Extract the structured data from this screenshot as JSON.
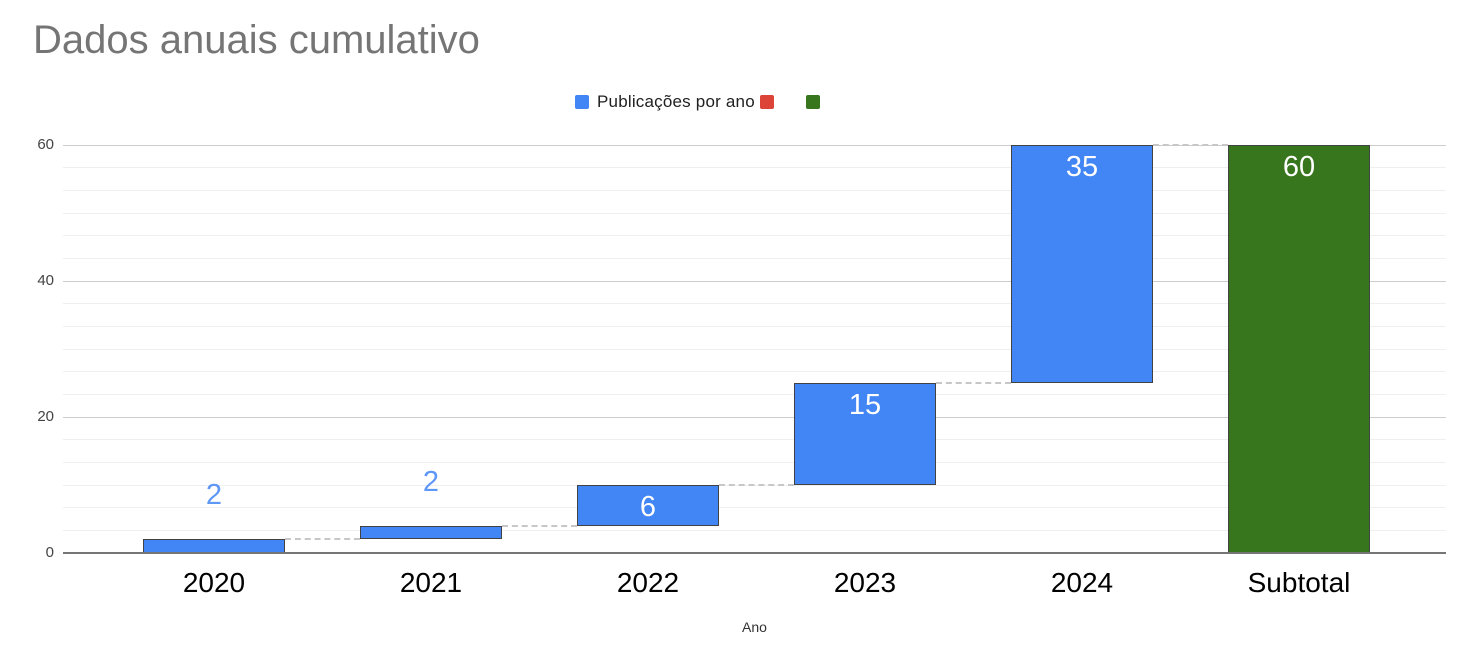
{
  "title": "Dados anuais cumulativo",
  "legend": {
    "items": [
      {
        "label": "Publicações por ano",
        "color": "#4285f4"
      },
      {
        "label": "",
        "color": "#db4437"
      },
      {
        "label": "",
        "color": "#38761d"
      }
    ]
  },
  "chart_data": {
    "type": "bar",
    "subtype": "waterfall-cumulative",
    "title": "Dados anuais cumulativo",
    "xlabel": "Ano",
    "ylabel": "",
    "categories": [
      "2020",
      "2021",
      "2022",
      "2023",
      "2024",
      "Subtotal"
    ],
    "series": [
      {
        "name": "Publicações por ano",
        "values": [
          2,
          2,
          6,
          15,
          35,
          60
        ]
      }
    ],
    "segments": [
      {
        "category": "2020",
        "value": 2,
        "start": 0,
        "end": 2,
        "label": "2",
        "label_position": "outside",
        "color": "#4285f4"
      },
      {
        "category": "2021",
        "value": 2,
        "start": 2,
        "end": 4,
        "label": "2",
        "label_position": "outside",
        "color": "#4285f4"
      },
      {
        "category": "2022",
        "value": 6,
        "start": 4,
        "end": 10,
        "label": "6",
        "label_position": "inside",
        "color": "#4285f4"
      },
      {
        "category": "2023",
        "value": 15,
        "start": 10,
        "end": 25,
        "label": "15",
        "label_position": "inside",
        "color": "#4285f4"
      },
      {
        "category": "2024",
        "value": 35,
        "start": 25,
        "end": 60,
        "label": "35",
        "label_position": "inside",
        "color": "#4285f4"
      },
      {
        "category": "Subtotal",
        "value": 60,
        "start": 0,
        "end": 60,
        "label": "60",
        "label_position": "inside",
        "color": "#38761d"
      }
    ],
    "yticks": [
      0,
      20,
      40,
      60
    ],
    "ylim": [
      0,
      60
    ],
    "minor_gridline_divisions_per_major": 6,
    "grid": true,
    "legend_position": "top",
    "connector_style": "dashed"
  },
  "colors": {
    "bar_blue": "#4285f4",
    "bar_green": "#38761d",
    "legend_red": "#db4437",
    "outside_label_blue": "#5e97f6",
    "inside_label_white": "#ffffff",
    "title_gray": "#757575",
    "axis_line_gray": "#757575",
    "major_gridline": "#cccccc",
    "minor_gridline": "#efefef",
    "connector_gray": "#c7c7c7",
    "bar_border": "#424242"
  }
}
